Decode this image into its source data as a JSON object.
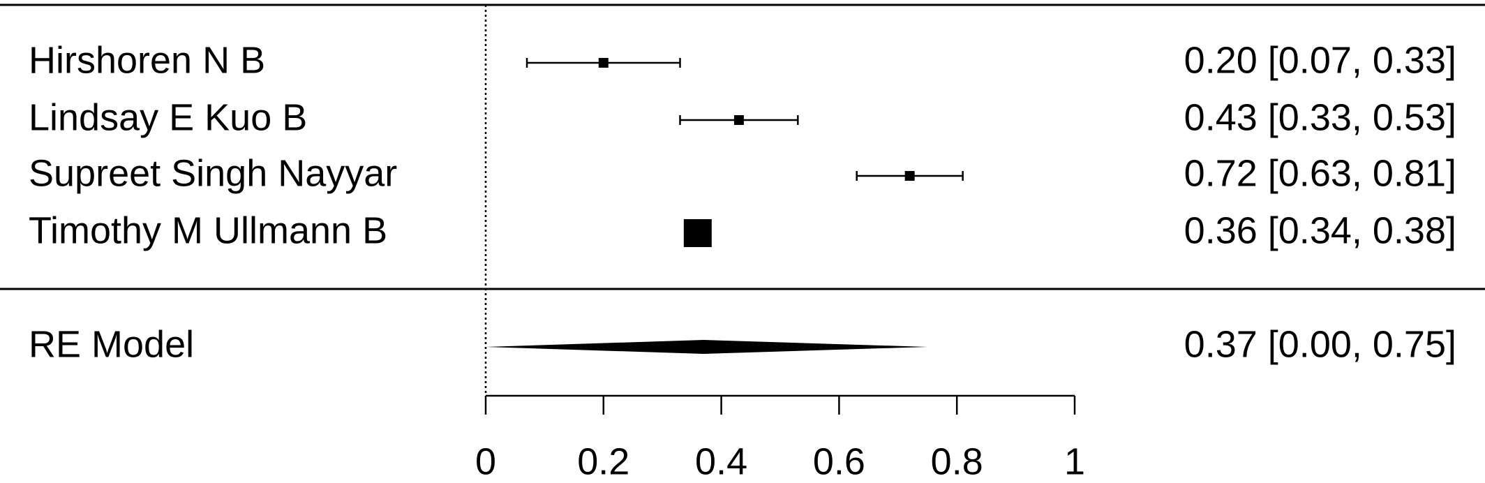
{
  "chart_data": {
    "type": "forest",
    "categories": [
      "Hirshoren N B",
      "Lindsay E Kuo B",
      "Supreet Singh Nayyar",
      "Timothy M Ullmann B"
    ],
    "values": [
      0.2,
      0.43,
      0.72,
      0.36
    ],
    "ci_lower": [
      0.07,
      0.33,
      0.63,
      0.34
    ],
    "ci_upper": [
      0.33,
      0.53,
      0.81,
      0.38
    ],
    "value_labels": [
      "0.20 [0.07, 0.33]",
      "0.43 [0.33, 0.53]",
      "0.72 [0.63, 0.81]",
      "0.36 [0.34, 0.38]"
    ],
    "summary": {
      "label": "RE Model",
      "value": 0.37,
      "ci_lower": 0.0,
      "ci_upper": 0.75,
      "value_label": "0.37 [0.00, 0.75]"
    },
    "color": "#000000",
    "xlim": [
      0,
      1
    ],
    "xticks": [
      0,
      0.2,
      0.4,
      0.6,
      0.8,
      1
    ],
    "reference_line": 0
  }
}
